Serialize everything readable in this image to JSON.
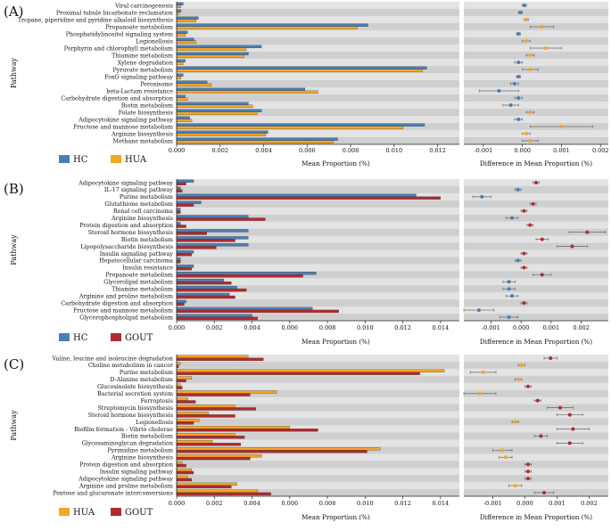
{
  "chart_data": [
    {
      "type": "bar",
      "panel_label": "(A)",
      "ylabel": "Pathway",
      "bar_xlabel": "Mean Proportion (%)",
      "diff_xlabel": "Difference in Mean Proportion (%)",
      "bar_xlim": [
        0,
        0.013
      ],
      "bar_ticks": [
        "0.000",
        "0.002",
        "0.004",
        "0.006",
        "0.008",
        "0.010",
        "0.012"
      ],
      "diff_xlim": [
        -0.0015,
        0.0022
      ],
      "diff_ticks": [
        "-0.001",
        "0.000",
        "0.001",
        "0.002"
      ],
      "legend": [
        {
          "name": "HC",
          "color": "#4a7fb5"
        },
        {
          "name": "HUA",
          "color": "#f5a623"
        }
      ],
      "categories": [
        "Viral carcinogenesis",
        "Proximal tubule bicarbonate reclamation",
        "Tropane, piperidine and pyridine alkaloid biosynthesis",
        "Propanoate metabolism",
        "Phosphatidylinositol signaling system",
        "Legionellosis",
        "Porphyrin and chlorophyll metabolism",
        "Thiamine metabolism",
        "Xylene degradation",
        "Pyruvate metabolism",
        "FoxO signaling pathway",
        "Peroxisome",
        "beta-Lactam resistance",
        "Carbohydrate digestion and absorption",
        "Biotin metabolism",
        "Folate biosynthesis",
        "Adipocytokine signaling pathway",
        "Fructose and mannose metabolism",
        "Arginine biosynthesis",
        "Methane metabolism"
      ],
      "series": [
        {
          "name": "HC",
          "values": [
            0.0003,
            0.0002,
            0.001,
            0.0088,
            0.0005,
            0.0008,
            0.0039,
            0.0033,
            0.0004,
            0.0115,
            0.0003,
            0.0014,
            0.0059,
            0.0004,
            0.0033,
            0.0039,
            0.0006,
            0.0114,
            0.0042,
            0.0074
          ]
        },
        {
          "name": "HUA",
          "values": [
            0.0002,
            0.0001,
            0.0009,
            0.0083,
            0.0004,
            0.0009,
            0.0032,
            0.0031,
            0.0003,
            0.0113,
            0.0002,
            0.0016,
            0.0065,
            0.0005,
            0.0035,
            0.0037,
            0.0007,
            0.0104,
            0.0041,
            0.0072
          ]
        }
      ],
      "differences": [
        {
          "value": 5e-05,
          "ci": [
            0.0,
            0.0001
          ],
          "favors": "HC"
        },
        {
          "value": -5e-05,
          "ci": [
            -0.0001,
            0.0
          ],
          "favors": "HC"
        },
        {
          "value": 0.0001,
          "ci": [
            5e-05,
            0.00015
          ],
          "favors": "HUA"
        },
        {
          "value": 0.0005,
          "ci": [
            0.0002,
            0.0008
          ],
          "favors": "HUA"
        },
        {
          "value": -0.0001,
          "ci": [
            -0.00015,
            -5e-05
          ],
          "favors": "HC"
        },
        {
          "value": 0.0001,
          "ci": [
            0.0,
            0.0002
          ],
          "favors": "HUA"
        },
        {
          "value": 0.0006,
          "ci": [
            0.0002,
            0.001
          ],
          "favors": "HUA"
        },
        {
          "value": 0.0002,
          "ci": [
            0.0001,
            0.0003
          ],
          "favors": "HUA"
        },
        {
          "value": -0.0001,
          "ci": [
            -0.0002,
            0.0
          ],
          "favors": "HC"
        },
        {
          "value": 0.0002,
          "ci": [
            0.0,
            0.0004
          ],
          "favors": "HUA"
        },
        {
          "value": -0.0001,
          "ci": [
            -0.00015,
            -5e-05
          ],
          "favors": "HC"
        },
        {
          "value": -0.0002,
          "ci": [
            -0.0003,
            -0.0001
          ],
          "favors": "HC"
        },
        {
          "value": -0.0006,
          "ci": [
            -0.0011,
            -0.0001
          ],
          "favors": "HC"
        },
        {
          "value": -0.0001,
          "ci": [
            -0.0002,
            0.0
          ],
          "favors": "HC"
        },
        {
          "value": -0.0003,
          "ci": [
            -0.0005,
            -0.0001
          ],
          "favors": "HC"
        },
        {
          "value": 0.0002,
          "ci": [
            0.0001,
            0.0003
          ],
          "favors": "HUA"
        },
        {
          "value": -0.0001,
          "ci": [
            -0.0002,
            0.0
          ],
          "favors": "HC"
        },
        {
          "value": 0.001,
          "ci": [
            0.0002,
            0.0018
          ],
          "favors": "HUA"
        },
        {
          "value": 0.0001,
          "ci": [
            0.0,
            0.0002
          ],
          "favors": "HUA"
        },
        {
          "value": 0.0002,
          "ci": [
            0.0,
            0.0004
          ],
          "favors": "HUA"
        }
      ]
    },
    {
      "type": "bar",
      "panel_label": "(B)",
      "ylabel": "Pathway",
      "bar_xlabel": "Mean Proportion (%)",
      "diff_xlabel": "Difference in Mean Proportion (%)",
      "bar_xlim": [
        0,
        0.015
      ],
      "bar_ticks": [
        "0.000",
        "0.002",
        "0.004",
        "0.006",
        "0.008",
        "0.010",
        "0.012",
        "0.014"
      ],
      "diff_xlim": [
        -0.0019,
        0.0029
      ],
      "diff_ticks": [
        "-0.001",
        "0.000",
        "0.001",
        "0.002"
      ],
      "legend": [
        {
          "name": "HC",
          "color": "#4a7fb5"
        },
        {
          "name": "GOUT",
          "color": "#b22a2e"
        }
      ],
      "categories": [
        "Adipocytokine signaling pathway",
        "IL-17 signaling pathway",
        "Purine metabolism",
        "Glutathione metabolism",
        "Renal cell carcinoma",
        "Arginine biosynthesis",
        "Protein digestion and absorption",
        "Steroid hormone biosynthesis",
        "Biotin metabolism",
        "Lipopolysaccharide biosynthesis",
        "Insulin signaling pathway",
        "Hepatocellular carcinoma",
        "Insulin resistance",
        "Propanoate metabolism",
        "Glycerolipid metabolism",
        "Thiamine metabolism",
        "Arginine and proline metabolism",
        "Carbohydrate digestion and absorption",
        "Fructose and mannose metabolism",
        "Glycerophospholipid metabolism"
      ],
      "series": [
        {
          "name": "HC",
          "values": [
            0.0009,
            0.0002,
            0.0127,
            0.0013,
            0.0002,
            0.0038,
            0.0002,
            0.0038,
            0.0038,
            0.0038,
            0.0009,
            0.0002,
            0.0009,
            0.0074,
            0.0025,
            0.0032,
            0.0028,
            0.0005,
            0.0072,
            0.004
          ]
        },
        {
          "name": "GOUT",
          "values": [
            0.0005,
            0.0003,
            0.014,
            0.0009,
            0.0002,
            0.0047,
            0.0005,
            0.0016,
            0.0031,
            0.0021,
            0.0008,
            0.0002,
            0.0008,
            0.0067,
            0.0029,
            0.0037,
            0.0031,
            0.0004,
            0.0086,
            0.0043
          ]
        }
      ],
      "differences": [
        {
          "value": 0.0005,
          "ci": [
            0.0004,
            0.0006
          ],
          "favors": "GOUT"
        },
        {
          "value": -0.0001,
          "ci": [
            -0.0002,
            0.0
          ],
          "favors": "HC"
        },
        {
          "value": -0.0013,
          "ci": [
            -0.0016,
            -0.001
          ],
          "favors": "HC"
        },
        {
          "value": 0.0004,
          "ci": [
            0.0003,
            0.0005
          ],
          "favors": "GOUT"
        },
        {
          "value": 0.0001,
          "ci": [
            0.0,
            0.0002
          ],
          "favors": "GOUT"
        },
        {
          "value": -0.0003,
          "ci": [
            -0.0005,
            -0.0001
          ],
          "favors": "HC"
        },
        {
          "value": 0.0003,
          "ci": [
            0.0002,
            0.0004
          ],
          "favors": "GOUT"
        },
        {
          "value": 0.0022,
          "ci": [
            0.0016,
            0.0028
          ],
          "favors": "GOUT"
        },
        {
          "value": 0.0007,
          "ci": [
            0.0005,
            0.0009
          ],
          "favors": "GOUT"
        },
        {
          "value": 0.0017,
          "ci": [
            0.0012,
            0.0022
          ],
          "favors": "GOUT"
        },
        {
          "value": 0.0001,
          "ci": [
            0.0,
            0.0002
          ],
          "favors": "GOUT"
        },
        {
          "value": -0.0001,
          "ci": [
            -0.0002,
            0.0
          ],
          "favors": "HC"
        },
        {
          "value": 0.0001,
          "ci": [
            0.0,
            0.0002
          ],
          "favors": "GOUT"
        },
        {
          "value": 0.0007,
          "ci": [
            0.0004,
            0.001
          ],
          "favors": "GOUT"
        },
        {
          "value": -0.0004,
          "ci": [
            -0.0006,
            -0.0002
          ],
          "favors": "HC"
        },
        {
          "value": -0.0004,
          "ci": [
            -0.0006,
            -0.0002
          ],
          "favors": "HC"
        },
        {
          "value": -0.0003,
          "ci": [
            -0.0005,
            -0.0001
          ],
          "favors": "HC"
        },
        {
          "value": 0.0001,
          "ci": [
            0.0,
            0.0002
          ],
          "favors": "GOUT"
        },
        {
          "value": -0.0014,
          "ci": [
            -0.0019,
            -0.0009
          ],
          "favors": "HC"
        },
        {
          "value": -0.0004,
          "ci": [
            -0.0007,
            -0.0001
          ],
          "favors": "HC"
        }
      ]
    },
    {
      "type": "bar",
      "panel_label": "(C)",
      "ylabel": "Pathway",
      "bar_xlabel": "Mean Proportion (%)",
      "diff_xlabel": "Difference in Mean Proportion (%)",
      "bar_xlim": [
        0,
        0.015
      ],
      "bar_ticks": [
        "0.000",
        "0.002",
        "0.004",
        "0.006",
        "0.008",
        "0.010",
        "0.012",
        "0.014"
      ],
      "diff_xlim": [
        -0.0019,
        0.0026
      ],
      "diff_ticks": [
        "-0.001",
        "0.000",
        "0.001",
        "0.002"
      ],
      "legend": [
        {
          "name": "HUA",
          "color": "#f5a623"
        },
        {
          "name": "GOUT",
          "color": "#b22a2e"
        }
      ],
      "categories": [
        "Valine, leucine and isoleucine degradation",
        "Choline metabolism in cancer",
        "Purine metabolism",
        "D-Alanine metabolism",
        "Glucosinolate biosynthesis",
        "Bacterial secretion system",
        "Ferroptosis",
        "Streptomycin biosynthesis",
        "Steroid hormone biosynthesis",
        "Legionellosis",
        "Biofilm formation - Vibrio cholerae",
        "Biotin metabolism",
        "Glycosaminoglycan degradation",
        "Pyrimidine metabolism",
        "Arginine biosynthesis",
        "Protein digestion and absorption",
        "Insulin signaling pathway",
        "Adipocytokine signaling pathway",
        "Arginine and proline metabolism",
        "Pentose and glucuronate interconversions"
      ],
      "series": [
        {
          "name": "HUA",
          "values": [
            0.0038,
            0.0002,
            0.0142,
            0.0008,
            0.0002,
            0.0053,
            0.0006,
            0.0031,
            0.0017,
            0.0012,
            0.006,
            0.0031,
            0.0019,
            0.0108,
            0.0045,
            0.0003,
            0.0008,
            0.0006,
            0.0032,
            0.0043
          ]
        },
        {
          "name": "GOUT",
          "values": [
            0.0046,
            0.0001,
            0.0129,
            0.0005,
            0.0003,
            0.0039,
            0.001,
            0.0042,
            0.0031,
            0.0009,
            0.0075,
            0.0036,
            0.0034,
            0.0101,
            0.0039,
            0.0005,
            0.0009,
            0.0008,
            0.0029,
            0.005
          ]
        }
      ],
      "differences": [
        {
          "value": 0.0008,
          "ci": [
            0.0006,
            0.001
          ],
          "favors": "GOUT"
        },
        {
          "value": -0.0001,
          "ci": [
            -0.0002,
            0.0
          ],
          "favors": "HUA"
        },
        {
          "value": -0.0013,
          "ci": [
            -0.0017,
            -0.0009
          ],
          "favors": "HUA"
        },
        {
          "value": -0.0002,
          "ci": [
            -0.0003,
            -0.0001
          ],
          "favors": "HUA"
        },
        {
          "value": 0.0001,
          "ci": [
            0.0,
            0.0002
          ],
          "favors": "GOUT"
        },
        {
          "value": -0.0014,
          "ci": [
            -0.0019,
            -0.0009
          ],
          "favors": "HUA"
        },
        {
          "value": 0.0004,
          "ci": [
            0.0003,
            0.0005
          ],
          "favors": "GOUT"
        },
        {
          "value": 0.0011,
          "ci": [
            0.0007,
            0.0015
          ],
          "favors": "GOUT"
        },
        {
          "value": 0.0014,
          "ci": [
            0.001,
            0.0018
          ],
          "favors": "GOUT"
        },
        {
          "value": -0.0003,
          "ci": [
            -0.0004,
            -0.0002
          ],
          "favors": "HUA"
        },
        {
          "value": 0.0015,
          "ci": [
            0.001,
            0.002
          ],
          "favors": "GOUT"
        },
        {
          "value": 0.0005,
          "ci": [
            0.0003,
            0.0007
          ],
          "favors": "GOUT"
        },
        {
          "value": 0.0014,
          "ci": [
            0.001,
            0.0018
          ],
          "favors": "GOUT"
        },
        {
          "value": -0.0007,
          "ci": [
            -0.001,
            -0.0004
          ],
          "favors": "HUA"
        },
        {
          "value": -0.0006,
          "ci": [
            -0.0008,
            -0.0004
          ],
          "favors": "HUA"
        },
        {
          "value": 0.0001,
          "ci": [
            0.0,
            0.0002
          ],
          "favors": "GOUT"
        },
        {
          "value": 0.0001,
          "ci": [
            0.0,
            0.0002
          ],
          "favors": "GOUT"
        },
        {
          "value": 0.0001,
          "ci": [
            0.0,
            0.0002
          ],
          "favors": "GOUT"
        },
        {
          "value": -0.0003,
          "ci": [
            -0.0005,
            -0.0001
          ],
          "favors": "HUA"
        },
        {
          "value": 0.0006,
          "ci": [
            0.0003,
            0.0009
          ],
          "favors": "GOUT"
        }
      ]
    }
  ]
}
